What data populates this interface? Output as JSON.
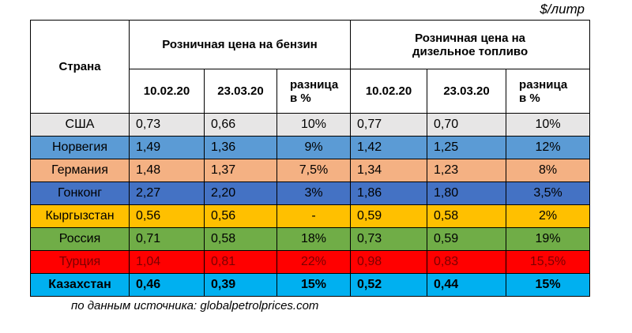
{
  "unit": "$/литр",
  "header": {
    "country": "Страна",
    "petrol": "Розничная цена на бензин",
    "diesel": "Розничная цена на дизельное топливо",
    "petrol_cols": [
      "10.02.20",
      "23.03.20",
      "разница в %"
    ],
    "diesel_cols": [
      "10.02.20",
      "23.03.20",
      "разница в %"
    ]
  },
  "rows": [
    [
      "США",
      "0,73",
      "0,66",
      "10%",
      "0,77",
      "0,70",
      "10%"
    ],
    [
      "Норвегия",
      "1,49",
      "1,36",
      "9%",
      "1,42",
      "1,25",
      "12%"
    ],
    [
      "Германия",
      "1,48",
      "1,37",
      "7,5%",
      "1,34",
      "1,23",
      "8%"
    ],
    [
      "Гонконг",
      "2,27",
      "2,20",
      "3%",
      "1,86",
      "1,80",
      "3,5%"
    ],
    [
      "Кыргызстан",
      "0,56",
      "0,56",
      "-",
      "0,59",
      "0,58",
      "2%"
    ],
    [
      "Россия",
      "0,71",
      "0,58",
      "18%",
      "0,73",
      "0,59",
      "19%"
    ],
    [
      "Турция",
      "1,04",
      "0,81",
      "22%",
      "0,98",
      "0,83",
      "15,5%"
    ],
    [
      "Казахстан",
      "0,46",
      "0,39",
      "15%",
      "0,52",
      "0,44",
      "15%"
    ]
  ],
  "source": "по данным источника: globalpetrolprices.com"
}
